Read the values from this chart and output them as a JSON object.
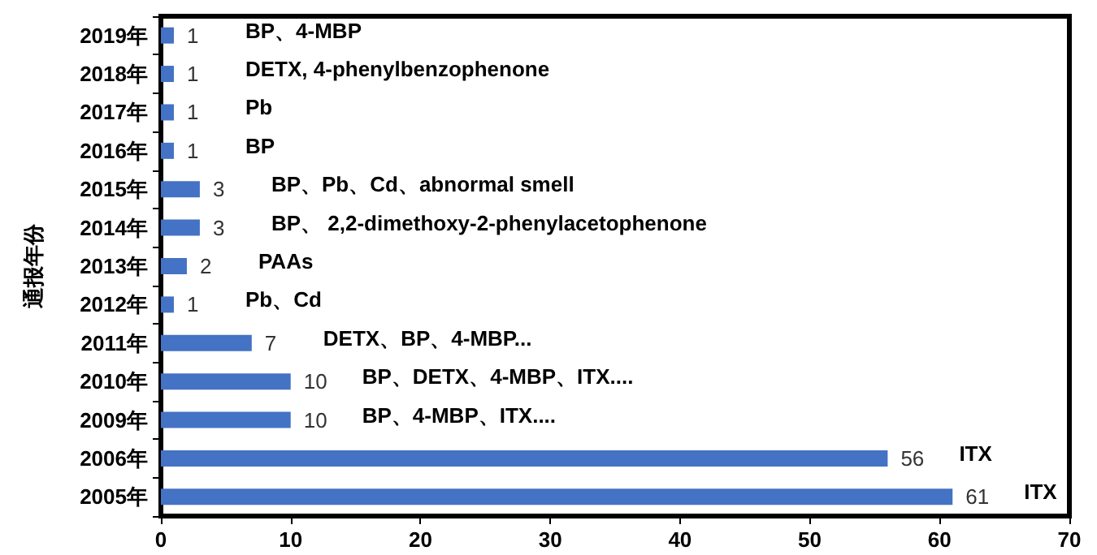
{
  "chart_data": {
    "type": "bar",
    "orientation": "horizontal",
    "ylabel": "通报年份",
    "categories": [
      "2019年",
      "2018年",
      "2017年",
      "2016年",
      "2015年",
      "2014年",
      "2013年",
      "2012年",
      "2011年",
      "2010年",
      "2009年",
      "2006年",
      "2005年"
    ],
    "values": [
      1,
      1,
      1,
      1,
      3,
      3,
      2,
      1,
      7,
      10,
      10,
      56,
      61
    ],
    "color": "#4472c4",
    "xlim": [
      0,
      70
    ],
    "xticks": [
      0,
      10,
      20,
      30,
      40,
      50,
      60,
      70
    ],
    "grid": false,
    "data_labels": true,
    "annotations": [
      "BP、4-MBP",
      "DETX, 4-phenylbenzophenone",
      "Pb",
      "BP",
      "BP、Pb、Cd、abnormal smell",
      "BP、 2,2-dimethoxy-2-phenylacetophenone",
      "PAAs",
      "Pb、Cd",
      "DETX、BP、4-MBP...",
      "BP、DETX、4-MBP、ITX....",
      "BP、4-MBP、ITX....",
      "ITX",
      "ITX"
    ]
  }
}
